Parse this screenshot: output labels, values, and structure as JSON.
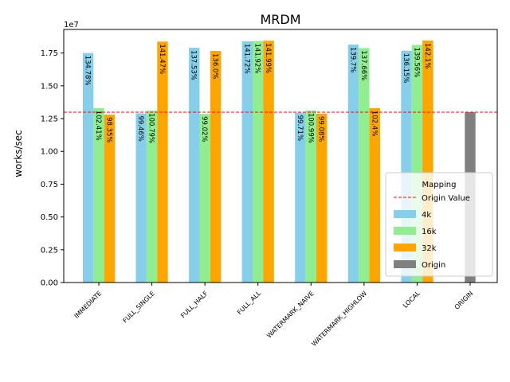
{
  "chart_data": {
    "type": "bar",
    "title": "MRDM",
    "xlabel": "",
    "ylabel": "works/sec",
    "y_multiplier_label": "1e7",
    "ylim": [
      0,
      19300000
    ],
    "yticks": [
      0,
      2500000,
      5000000,
      7500000,
      10000000,
      12500000,
      15000000,
      17500000
    ],
    "ytick_labels": [
      "0.00",
      "0.25",
      "0.50",
      "0.75",
      "1.00",
      "1.25",
      "1.50",
      "1.75"
    ],
    "categories": [
      "IMMEDIATE",
      "FULL_SINGLE",
      "FULL_HALF",
      "FULL_ALL",
      "WATERMARK_NAIVE",
      "WATERMARK_HIGHLOW",
      "LOCAL",
      "ORIGIN"
    ],
    "series": [
      {
        "name": "4k",
        "color": "#87ceeb",
        "values": [
          17500000,
          12900000,
          17900000,
          18400000,
          12950000,
          18150000,
          17680000,
          null
        ],
        "labels": [
          "134.78%",
          "99.46%",
          "137.53%",
          "141.72%",
          "99.71%",
          "139.7%",
          "136.15%",
          null
        ]
      },
      {
        "name": "16k",
        "color": "#90ee90",
        "values": [
          13300000,
          13100000,
          12860000,
          18420000,
          13110000,
          17880000,
          18120000,
          null
        ],
        "labels": [
          "102.41%",
          "100.79%",
          "99.02%",
          "141.92%",
          "100.99%",
          "137.66%",
          "139.56%",
          null
        ]
      },
      {
        "name": "32k",
        "color": "#ffa500",
        "values": [
          12800000,
          18370000,
          17660000,
          18440000,
          12870000,
          13300000,
          18450000,
          null
        ],
        "labels": [
          "98.35%",
          "141.47%",
          "136.0%",
          "141.99%",
          "99.08%",
          "102.4%",
          "142.1%",
          null
        ]
      },
      {
        "name": "Origin",
        "color": "#808080",
        "values": [
          null,
          null,
          null,
          null,
          null,
          null,
          null,
          12990000
        ],
        "labels": [
          null,
          null,
          null,
          null,
          null,
          null,
          null,
          null
        ]
      }
    ],
    "reference_line": {
      "name": "Origin Value",
      "value": 12990000,
      "color": "#ff0000",
      "style": "dashed"
    },
    "legend": {
      "title": "Mapping",
      "placement": "lower-right",
      "entries": [
        "Origin Value",
        "4k",
        "16k",
        "32k",
        "Origin"
      ]
    },
    "grid": false
  }
}
